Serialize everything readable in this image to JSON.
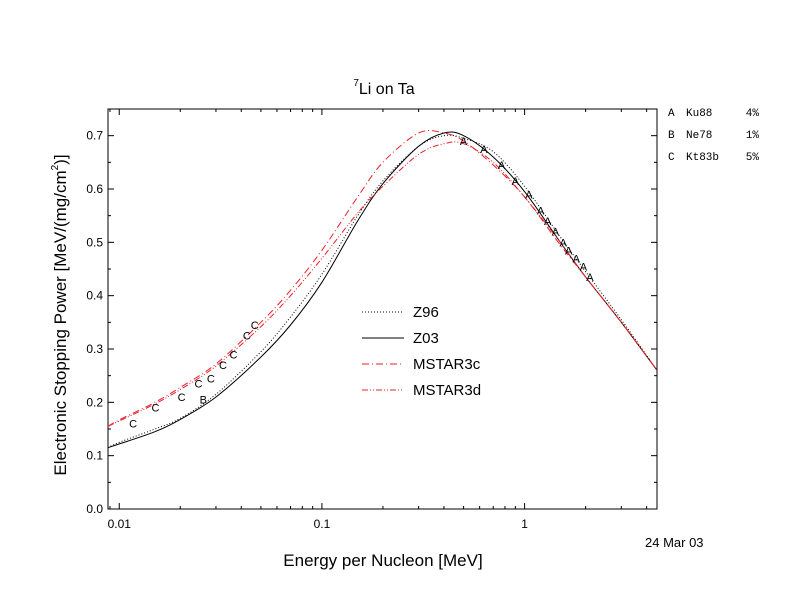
{
  "chart_data": {
    "type": "line",
    "title_sup": "7",
    "title_main": "Li on Ta",
    "xlabel": "Energy per Nucleon [MeV]",
    "ylabel_main": "Electronic Stopping Power [MeV/(mg/cm",
    "ylabel_sup": "2",
    "ylabel_end": ")]",
    "x_scale": "log",
    "xlim": [
      0.0088,
      4.5
    ],
    "ylim": [
      0.0,
      0.75
    ],
    "x_ticks": [
      {
        "value": 0.01,
        "label": "0.01"
      },
      {
        "value": 0.1,
        "label": "0.1"
      },
      {
        "value": 1,
        "label": "1"
      }
    ],
    "y_ticks": [
      {
        "value": 0.0,
        "label": "0.0"
      },
      {
        "value": 0.1,
        "label": "0.1"
      },
      {
        "value": 0.2,
        "label": "0.2"
      },
      {
        "value": 0.3,
        "label": "0.3"
      },
      {
        "value": 0.4,
        "label": "0.4"
      },
      {
        "value": 0.5,
        "label": "0.5"
      },
      {
        "value": 0.6,
        "label": "0.6"
      },
      {
        "value": 0.7,
        "label": "0.7"
      }
    ],
    "date_stamp": "24 Mar 03",
    "series": [
      {
        "name": "Z96",
        "color": "#000000",
        "style": "dotted",
        "x": [
          0.0088,
          0.01,
          0.015,
          0.02,
          0.03,
          0.05,
          0.07,
          0.1,
          0.15,
          0.2,
          0.3,
          0.4,
          0.5,
          0.7,
          1,
          1.5,
          2,
          3,
          4.5
        ],
        "y": [
          0.115,
          0.125,
          0.15,
          0.17,
          0.215,
          0.295,
          0.36,
          0.44,
          0.55,
          0.615,
          0.68,
          0.7,
          0.695,
          0.67,
          0.605,
          0.51,
          0.445,
          0.355,
          0.26
        ]
      },
      {
        "name": "Z03",
        "color": "#000000",
        "style": "solid",
        "x": [
          0.0088,
          0.01,
          0.015,
          0.02,
          0.03,
          0.05,
          0.07,
          0.1,
          0.15,
          0.2,
          0.3,
          0.4,
          0.5,
          0.7,
          1,
          1.5,
          2,
          3,
          4.5
        ],
        "y": [
          0.115,
          0.122,
          0.145,
          0.168,
          0.21,
          0.285,
          0.345,
          0.425,
          0.54,
          0.61,
          0.68,
          0.705,
          0.7,
          0.66,
          0.595,
          0.5,
          0.435,
          0.35,
          0.26
        ]
      },
      {
        "name": "MSTAR3c",
        "color": "#e8202a",
        "style": "dashdot",
        "x": [
          0.0088,
          0.01,
          0.015,
          0.02,
          0.03,
          0.05,
          0.07,
          0.1,
          0.15,
          0.2,
          0.3,
          0.4,
          0.5,
          0.7,
          1,
          1.5,
          2,
          3,
          4.5
        ],
        "y": [
          0.155,
          0.167,
          0.2,
          0.228,
          0.272,
          0.35,
          0.41,
          0.485,
          0.585,
          0.65,
          0.705,
          0.705,
          0.69,
          0.645,
          0.585,
          0.495,
          0.435,
          0.35,
          0.26
        ]
      },
      {
        "name": "MSTAR3d",
        "color": "#e8202a",
        "style": "dashdotdot",
        "x": [
          0.0088,
          0.01,
          0.015,
          0.02,
          0.03,
          0.05,
          0.07,
          0.1,
          0.15,
          0.2,
          0.3,
          0.4,
          0.5,
          0.7,
          1,
          1.5,
          2,
          3,
          4.5
        ],
        "y": [
          0.155,
          0.165,
          0.197,
          0.224,
          0.268,
          0.342,
          0.4,
          0.47,
          0.555,
          0.605,
          0.665,
          0.685,
          0.685,
          0.65,
          0.585,
          0.5,
          0.435,
          0.35,
          0.26
        ]
      }
    ],
    "points": [
      {
        "label": "A",
        "x": [
          0.5,
          0.63,
          0.77,
          0.9,
          1.05,
          1.2,
          1.3,
          1.42,
          1.55,
          1.65,
          1.8,
          1.95,
          2.1
        ],
        "y": [
          0.69,
          0.675,
          0.645,
          0.615,
          0.59,
          0.56,
          0.54,
          0.52,
          0.5,
          0.485,
          0.47,
          0.455,
          0.435
        ]
      },
      {
        "label": "B",
        "x": [
          0.026
        ],
        "y": [
          0.205
        ]
      },
      {
        "label": "C",
        "x": [
          0.0117,
          0.0151,
          0.0203,
          0.0246,
          0.0283,
          0.0325,
          0.0366,
          0.0426,
          0.0466
        ],
        "y": [
          0.16,
          0.19,
          0.21,
          0.235,
          0.245,
          0.27,
          0.29,
          0.325,
          0.345
        ]
      }
    ],
    "reference_legend": [
      {
        "letter": "A",
        "name": "Ku88",
        "pct": "4%"
      },
      {
        "letter": "B",
        "name": "Ne78",
        "pct": "1%"
      },
      {
        "letter": "C",
        "name": "Kt83b",
        "pct": "5%"
      }
    ]
  }
}
